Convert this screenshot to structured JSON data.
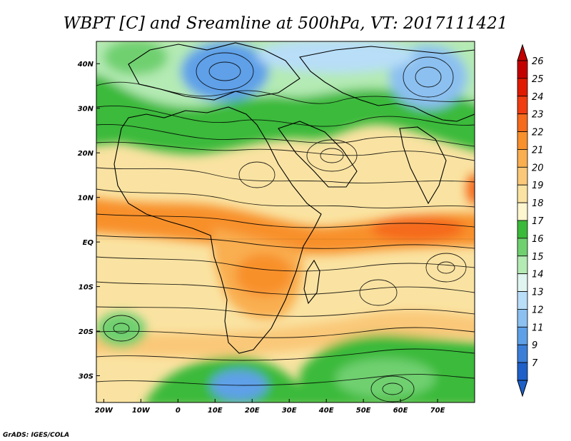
{
  "title": "WBPT [C] and Sreamline at 500hPa, VT: 2017111421",
  "credit": "GrADS: IGES/COLA",
  "map": {
    "lon_ticks": [
      "20W",
      "10W",
      "0",
      "10E",
      "20E",
      "30E",
      "40E",
      "50E",
      "60E",
      "70E"
    ],
    "lon_values": [
      -20,
      -10,
      0,
      10,
      20,
      30,
      40,
      50,
      60,
      70
    ],
    "lat_ticks": [
      "40N",
      "30N",
      "20N",
      "10N",
      "EQ",
      "10S",
      "20S",
      "30S"
    ],
    "lat_values": [
      40,
      30,
      20,
      10,
      0,
      -10,
      -20,
      -30
    ],
    "lon_range": [
      -22,
      80
    ],
    "lat_range": [
      -36,
      45
    ]
  },
  "colorbar": {
    "labels": [
      "26",
      "25",
      "24",
      "23",
      "22",
      "21",
      "20",
      "19",
      "18",
      "17",
      "16",
      "15",
      "14",
      "13",
      "12",
      "11",
      "9",
      "7"
    ],
    "colors": [
      "#c30000",
      "#e01a00",
      "#f03c10",
      "#f56a1c",
      "#f8902c",
      "#f9ae50",
      "#fac878",
      "#fae3a2",
      "#fdf6ce",
      "#3aba3a",
      "#70d070",
      "#b4eab4",
      "#e0f5f0",
      "#b8def8",
      "#8cc0f0",
      "#5ea0e8",
      "#3a7ed8",
      "#1e60c8"
    ]
  }
}
